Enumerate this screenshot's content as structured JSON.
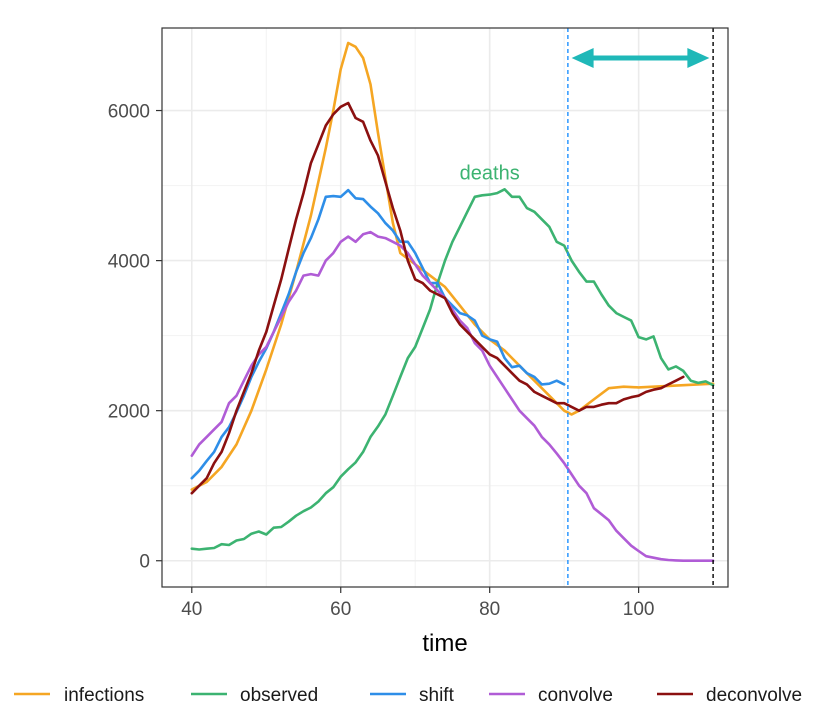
{
  "chart_data": {
    "type": "line",
    "title": "",
    "xlabel": "time",
    "ylabel": "",
    "xlim": [
      36,
      112
    ],
    "ylim": [
      -350,
      7100
    ],
    "xticks": [
      40,
      60,
      80,
      100
    ],
    "yticks": [
      0,
      2000,
      4000,
      6000
    ],
    "grid": true,
    "legend_position": "bottom",
    "annotations": [
      {
        "text": "deaths",
        "x": 80,
        "y": 5080,
        "color": "#3cb371"
      }
    ],
    "vlines": [
      {
        "x": 90.5,
        "color": "#1e90ff",
        "style": "dashed"
      },
      {
        "x": 110,
        "color": "#000000",
        "style": "dashed"
      }
    ],
    "arrow": {
      "x1": 91,
      "x2": 109.5,
      "y": 6700,
      "color": "#1fb8b8",
      "double_headed": true
    },
    "series": [
      {
        "name": "infections",
        "color": "#f5a623",
        "x": [
          40,
          42,
          44,
          46,
          48,
          50,
          52,
          54,
          56,
          58,
          59,
          60,
          61,
          62,
          63,
          64,
          65,
          66,
          67,
          68,
          70,
          72,
          74,
          76,
          78,
          80,
          82,
          84,
          86,
          88,
          90,
          91,
          92,
          94,
          96,
          98,
          100,
          102,
          104,
          106,
          108,
          110
        ],
        "y": [
          950,
          1050,
          1250,
          1550,
          2000,
          2550,
          3150,
          3850,
          4600,
          5500,
          6000,
          6550,
          6900,
          6850,
          6700,
          6350,
          5700,
          5100,
          4500,
          4100,
          3950,
          3800,
          3650,
          3400,
          3150,
          2950,
          2800,
          2600,
          2400,
          2200,
          2000,
          1950,
          2000,
          2150,
          2300,
          2320,
          2310,
          2320,
          2330,
          2340,
          2350,
          2360
        ]
      },
      {
        "name": "observed",
        "color": "#3cb371",
        "x": [
          40,
          41,
          42,
          43,
          44,
          45,
          46,
          47,
          48,
          49,
          50,
          51,
          52,
          53,
          54,
          55,
          56,
          57,
          58,
          59,
          60,
          61,
          62,
          63,
          64,
          65,
          66,
          67,
          68,
          69,
          70,
          71,
          72,
          73,
          74,
          75,
          76,
          77,
          78,
          79,
          80,
          81,
          82,
          83,
          84,
          85,
          86,
          87,
          88,
          89,
          90,
          91,
          92,
          93,
          94,
          95,
          96,
          97,
          98,
          99,
          100,
          101,
          102,
          103,
          104,
          105,
          106,
          107,
          108,
          109,
          110
        ],
        "y": [
          160,
          150,
          160,
          170,
          220,
          210,
          270,
          290,
          360,
          390,
          350,
          440,
          450,
          520,
          600,
          660,
          710,
          790,
          900,
          980,
          1120,
          1220,
          1310,
          1450,
          1650,
          1790,
          1950,
          2200,
          2450,
          2700,
          2850,
          3100,
          3350,
          3700,
          4000,
          4250,
          4450,
          4650,
          4850,
          4870,
          4880,
          4900,
          4950,
          4850,
          4850,
          4700,
          4650,
          4550,
          4450,
          4250,
          4200,
          4000,
          3850,
          3720,
          3720,
          3550,
          3400,
          3300,
          3250,
          3200,
          2980,
          2950,
          2990,
          2700,
          2550,
          2590,
          2530,
          2400,
          2370,
          2390,
          2340
        ]
      },
      {
        "name": "shift",
        "color": "#2e8ee8",
        "x": [
          40,
          41,
          42,
          43,
          44,
          45,
          46,
          47,
          48,
          49,
          50,
          51,
          52,
          53,
          54,
          55,
          56,
          57,
          58,
          59,
          60,
          61,
          62,
          63,
          64,
          65,
          66,
          67,
          68,
          69,
          70,
          71,
          72,
          73,
          74,
          75,
          76,
          77,
          78,
          79,
          80,
          81,
          82,
          83,
          84,
          85,
          86,
          87,
          88,
          89,
          90
        ],
        "y": [
          1100,
          1200,
          1330,
          1450,
          1650,
          1780,
          1980,
          2200,
          2450,
          2650,
          2830,
          3050,
          3300,
          3550,
          3850,
          4100,
          4300,
          4550,
          4850,
          4860,
          4850,
          4940,
          4830,
          4820,
          4720,
          4630,
          4500,
          4400,
          4250,
          4250,
          4100,
          3900,
          3700,
          3700,
          3500,
          3400,
          3300,
          3270,
          3200,
          3000,
          2950,
          2920,
          2700,
          2580,
          2600,
          2500,
          2450,
          2350,
          2360,
          2400,
          2350
        ]
      },
      {
        "name": "convolve",
        "color": "#b05cd6",
        "x": [
          40,
          41,
          42,
          43,
          44,
          45,
          46,
          47,
          48,
          49,
          50,
          51,
          52,
          53,
          54,
          55,
          56,
          57,
          58,
          59,
          60,
          61,
          62,
          63,
          64,
          65,
          66,
          67,
          68,
          69,
          70,
          71,
          72,
          73,
          74,
          75,
          76,
          77,
          78,
          79,
          80,
          81,
          82,
          83,
          84,
          85,
          86,
          87,
          88,
          89,
          90,
          91,
          92,
          93,
          94,
          95,
          96,
          97,
          98,
          99,
          100,
          101,
          102,
          103,
          104,
          105,
          106,
          107,
          108,
          109,
          110
        ],
        "y": [
          1400,
          1550,
          1650,
          1750,
          1850,
          2100,
          2200,
          2400,
          2600,
          2750,
          2850,
          3050,
          3250,
          3450,
          3600,
          3800,
          3820,
          3800,
          4000,
          4100,
          4250,
          4320,
          4250,
          4350,
          4380,
          4320,
          4300,
          4250,
          4200,
          4100,
          3950,
          3800,
          3700,
          3600,
          3500,
          3350,
          3200,
          3100,
          2900,
          2800,
          2600,
          2450,
          2300,
          2150,
          2000,
          1900,
          1800,
          1650,
          1550,
          1430,
          1300,
          1150,
          1000,
          900,
          700,
          620,
          540,
          400,
          300,
          200,
          130,
          60,
          40,
          20,
          10,
          5,
          0,
          0,
          0,
          0,
          0
        ]
      },
      {
        "name": "deconvolve",
        "color": "#8b1010",
        "x": [
          40,
          41,
          42,
          43,
          44,
          45,
          46,
          47,
          48,
          49,
          50,
          51,
          52,
          53,
          54,
          55,
          56,
          57,
          58,
          59,
          60,
          61,
          62,
          63,
          64,
          65,
          66,
          67,
          68,
          69,
          70,
          71,
          72,
          73,
          74,
          75,
          76,
          77,
          78,
          79,
          80,
          81,
          82,
          83,
          84,
          85,
          86,
          87,
          88,
          89,
          90,
          91,
          92,
          93,
          94,
          95,
          96,
          97,
          98,
          99,
          100,
          101,
          102,
          103,
          104,
          105,
          106
        ],
        "y": [
          900,
          1000,
          1100,
          1300,
          1450,
          1700,
          2000,
          2250,
          2500,
          2800,
          3050,
          3400,
          3750,
          4150,
          4550,
          4900,
          5300,
          5550,
          5800,
          5950,
          6050,
          6100,
          5900,
          5850,
          5600,
          5400,
          5050,
          4700,
          4400,
          4000,
          3750,
          3700,
          3600,
          3550,
          3500,
          3300,
          3150,
          3050,
          2950,
          2850,
          2750,
          2700,
          2600,
          2500,
          2400,
          2350,
          2250,
          2200,
          2150,
          2100,
          2100,
          2050,
          2000,
          2050,
          2050,
          2080,
          2100,
          2100,
          2150,
          2180,
          2200,
          2250,
          2280,
          2300,
          2350,
          2400,
          2450
        ]
      }
    ]
  }
}
